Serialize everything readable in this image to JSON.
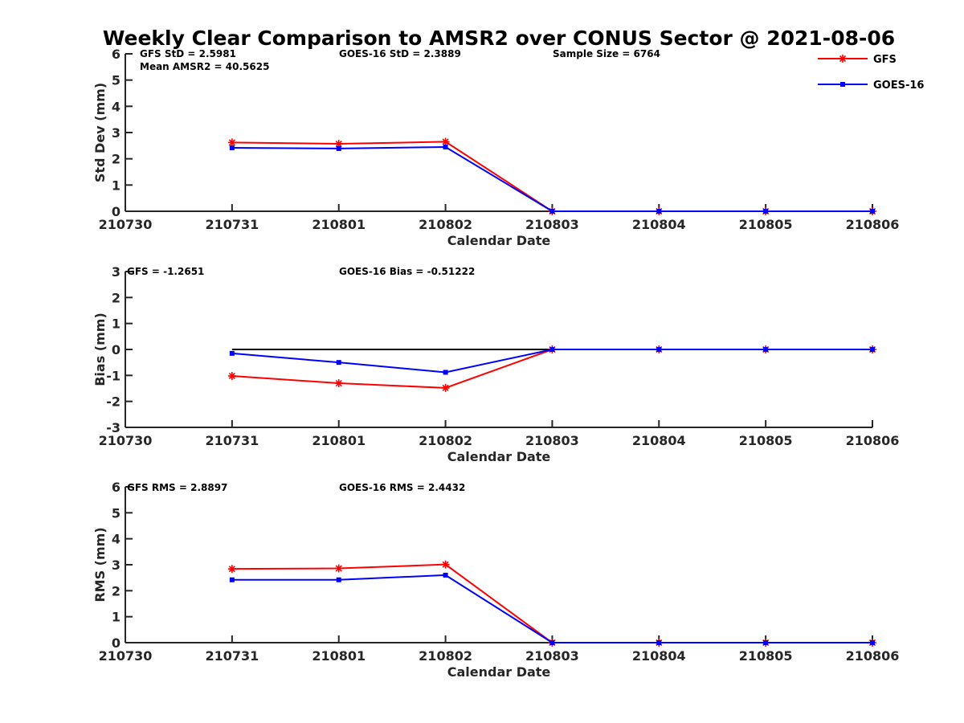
{
  "figure_title": "Weekly Clear Comparison to AMSR2 over CONUS Sector @ 2021-08-06",
  "legend": {
    "placement": "top-right",
    "entries": [
      {
        "label": "GFS",
        "color": "#ff0000",
        "marker": "asterisk"
      },
      {
        "label": "GOES-16",
        "color": "#0000ff",
        "marker": "square"
      }
    ]
  },
  "chart_data": [
    {
      "type": "line",
      "title": "Weekly Clear Comparison to AMSR2 over CONUS Sector @ 2021-08-06",
      "xlabel": "Calendar Date",
      "ylabel": "Std Dev (mm)",
      "ylim": [
        0,
        6
      ],
      "yticks": [
        "0",
        "1",
        "2",
        "3",
        "4",
        "5",
        "6"
      ],
      "x": [
        "210730",
        "210731",
        "210801",
        "210802",
        "210803",
        "210804",
        "210805",
        "210806"
      ],
      "annotations": [
        "GFS StD = 2.5981",
        "GOES-16 StD = 2.3889",
        "Sample Size = 6764",
        "Mean AMSR2 = 40.5625"
      ],
      "series": [
        {
          "name": "GFS",
          "color": "#ff0000",
          "x": [
            "210731",
            "210801",
            "210802",
            "210803",
            "210804",
            "210805",
            "210806"
          ],
          "values": [
            2.62,
            2.57,
            2.65,
            0,
            0,
            0,
            0
          ]
        },
        {
          "name": "GOES-16",
          "color": "#0000ff",
          "x": [
            "210731",
            "210801",
            "210802",
            "210803",
            "210804",
            "210805",
            "210806"
          ],
          "values": [
            2.42,
            2.39,
            2.45,
            0,
            0,
            0,
            0
          ]
        }
      ]
    },
    {
      "type": "line",
      "xlabel": "Calendar Date",
      "ylabel": "Bias (mm)",
      "ylim": [
        -3,
        3
      ],
      "yticks": [
        "-3",
        "-2",
        "-1",
        "0",
        "1",
        "2",
        "3"
      ],
      "x": [
        "210730",
        "210731",
        "210801",
        "210802",
        "210803",
        "210804",
        "210805",
        "210806"
      ],
      "annotations": [
        "GFS = -1.2651",
        "GOES-16 Bias  = -0.51222"
      ],
      "zero_line": true,
      "series": [
        {
          "name": "GFS",
          "color": "#ff0000",
          "x": [
            "210731",
            "210801",
            "210802",
            "210803",
            "210804",
            "210805",
            "210806"
          ],
          "values": [
            -1.02,
            -1.3,
            -1.48,
            0,
            0,
            0,
            0
          ]
        },
        {
          "name": "GOES-16",
          "color": "#0000ff",
          "x": [
            "210731",
            "210801",
            "210802",
            "210803",
            "210804",
            "210805",
            "210806"
          ],
          "values": [
            -0.15,
            -0.5,
            -0.88,
            0,
            0,
            0,
            0
          ]
        }
      ]
    },
    {
      "type": "line",
      "xlabel": "Calendar Date",
      "ylabel": "RMS (mm)",
      "ylim": [
        0,
        6
      ],
      "yticks": [
        "0",
        "1",
        "2",
        "3",
        "4",
        "5",
        "6"
      ],
      "x": [
        "210730",
        "210731",
        "210801",
        "210802",
        "210803",
        "210804",
        "210805",
        "210806"
      ],
      "annotations": [
        "GFS RMS = 2.8897",
        "GOES-16 RMS = 2.4432"
      ],
      "series": [
        {
          "name": "GFS",
          "color": "#ff0000",
          "x": [
            "210731",
            "210801",
            "210802",
            "210803",
            "210804",
            "210805",
            "210806"
          ],
          "values": [
            2.84,
            2.86,
            3.01,
            0,
            0,
            0,
            0
          ]
        },
        {
          "name": "GOES-16",
          "color": "#0000ff",
          "x": [
            "210731",
            "210801",
            "210802",
            "210803",
            "210804",
            "210805",
            "210806"
          ],
          "values": [
            2.42,
            2.42,
            2.6,
            0,
            0,
            0,
            0
          ]
        }
      ]
    }
  ]
}
